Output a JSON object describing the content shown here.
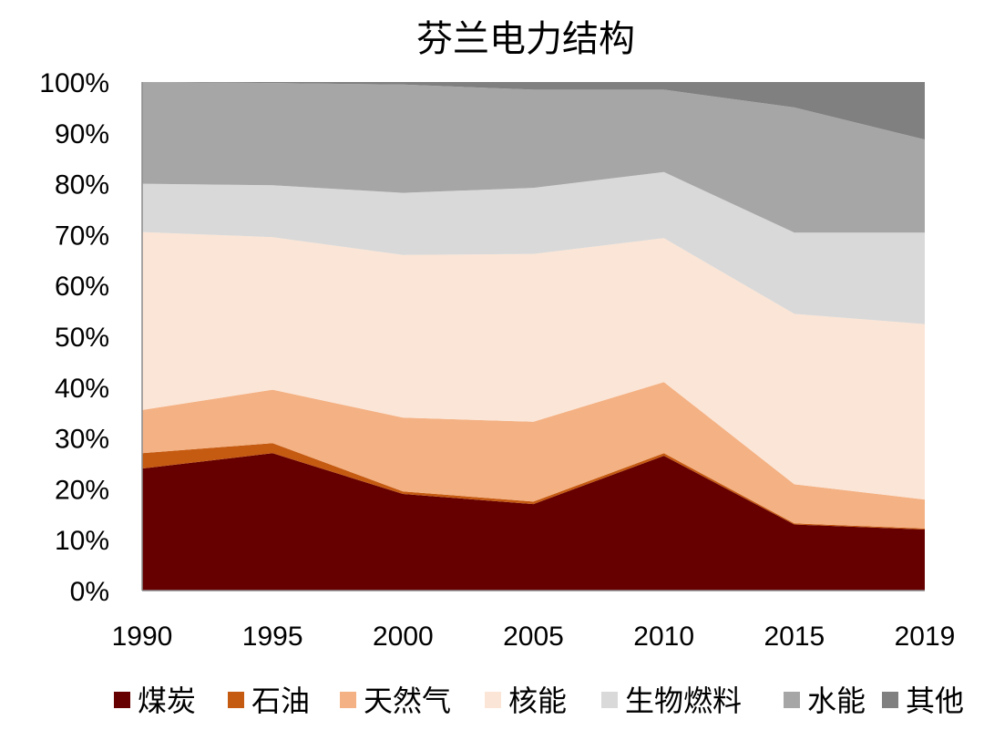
{
  "chart_data": {
    "type": "area",
    "stacked": true,
    "percent": true,
    "title": "芬兰电力结构",
    "xlabel": "",
    "ylabel": "",
    "categories": [
      "1990",
      "1995",
      "2000",
      "2005",
      "2010",
      "2015",
      "2019"
    ],
    "y_ticks": [
      "0%",
      "10%",
      "20%",
      "30%",
      "40%",
      "50%",
      "60%",
      "70%",
      "80%",
      "90%",
      "100%"
    ],
    "ylim": [
      0,
      100
    ],
    "grid": false,
    "legend_position": "bottom",
    "series": [
      {
        "name": "煤炭",
        "color": "#660000",
        "values": [
          24,
          27,
          19,
          17,
          26.5,
          13,
          12
        ]
      },
      {
        "name": "石油",
        "color": "#C55A11",
        "values": [
          3,
          2,
          0.5,
          0.5,
          0.5,
          0.2,
          0.2
        ]
      },
      {
        "name": "天然气",
        "color": "#F4B183",
        "values": [
          8.5,
          10.5,
          14.5,
          15.7,
          14,
          7.7,
          5.7
        ]
      },
      {
        "name": "核能",
        "color": "#FBE5D6",
        "values": [
          35,
          30,
          32,
          33,
          28.3,
          33.5,
          34.5
        ]
      },
      {
        "name": "生物燃料",
        "color": "#D9D9D9",
        "values": [
          9.5,
          10.2,
          12.2,
          13,
          13,
          16,
          18
        ]
      },
      {
        "name": "水能",
        "color": "#A6A6A6",
        "values": [
          20,
          20.1,
          21.3,
          19.3,
          16.2,
          24.6,
          18.3
        ]
      },
      {
        "name": "其他",
        "color": "#808080",
        "values": [
          0,
          0.2,
          0.5,
          1.5,
          1.5,
          5,
          11.3
        ]
      }
    ]
  }
}
